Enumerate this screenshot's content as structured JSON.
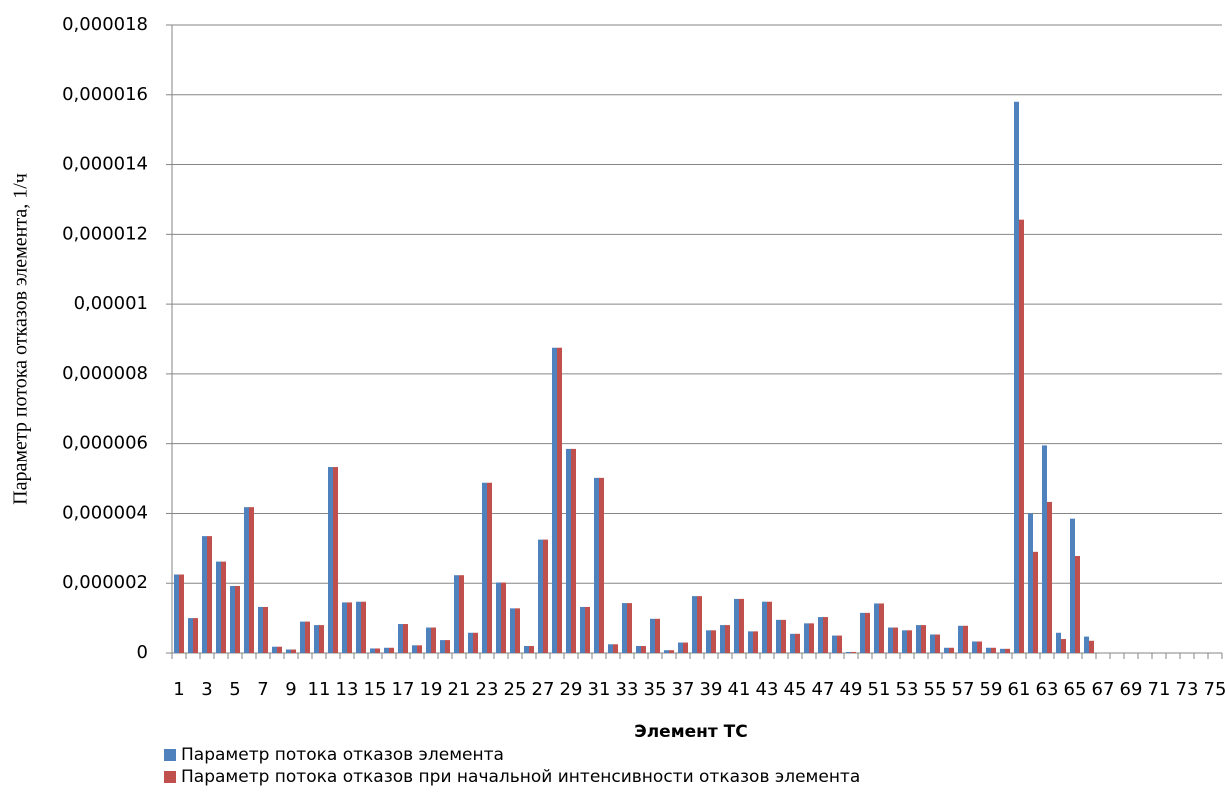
{
  "chart_data": {
    "type": "bar",
    "x_label": "Элемент ТС",
    "y_label": "Параметр потока отказов элемента, 1/ч",
    "categories": [
      "1",
      null,
      "3",
      null,
      "5",
      null,
      "7",
      null,
      "9",
      null,
      "11",
      null,
      "13",
      null,
      "15",
      null,
      "17",
      null,
      "19",
      null,
      "21",
      null,
      "23",
      null,
      "25",
      null,
      "27",
      null,
      "29",
      null,
      "31",
      null,
      "33",
      null,
      "35",
      null,
      "37",
      null,
      "39",
      null,
      "41",
      null,
      "43",
      null,
      "45",
      null,
      "47",
      null,
      "49",
      null,
      "51",
      null,
      "53",
      null,
      "55",
      null,
      "57",
      null,
      "59",
      null,
      "61",
      null,
      "63",
      null,
      "65",
      null,
      "67",
      null,
      "69",
      null,
      "71",
      null,
      "73",
      null,
      "75"
    ],
    "series": [
      {
        "name": "Параметр потока отказов элемента",
        "color": "#4f81bd",
        "values": [
          2.25e-06,
          1e-06,
          3.35e-06,
          2.62e-06,
          1.92e-06,
          4.18e-06,
          1.32e-06,
          1.8e-07,
          1e-07,
          9e-07,
          8e-07,
          5.33e-06,
          1.45e-06,
          1.47e-06,
          1.3e-07,
          1.5e-07,
          8.3e-07,
          2.2e-07,
          7.3e-07,
          3.7e-07,
          2.23e-06,
          5.8e-07,
          4.88e-06,
          2.02e-06,
          1.28e-06,
          2e-07,
          3.25e-06,
          8.75e-06,
          5.85e-06,
          1.32e-06,
          5.02e-06,
          2.5e-07,
          1.43e-06,
          2e-07,
          9.8e-07,
          8e-08,
          3e-07,
          1.63e-06,
          6.5e-07,
          8e-07,
          1.55e-06,
          6.2e-07,
          1.47e-06,
          9.5e-07,
          5.5e-07,
          8.5e-07,
          1.03e-06,
          5e-07,
          3e-08,
          1.15e-06,
          1.42e-06,
          7.3e-07,
          6.5e-07,
          8e-07,
          5.3e-07,
          1.5e-07,
          7.8e-07,
          3.3e-07,
          1.5e-07,
          1.2e-07,
          1.58e-05,
          4e-06,
          5.95e-06,
          5.8e-07,
          3.85e-06,
          4.7e-07,
          0,
          0,
          0,
          0,
          0,
          0,
          0,
          0,
          0
        ]
      },
      {
        "name": "Параметр потока отказов при начальной интенсивности отказов элемента",
        "color": "#c0504d",
        "values": [
          2.25e-06,
          1e-06,
          3.35e-06,
          2.62e-06,
          1.92e-06,
          4.18e-06,
          1.32e-06,
          1.8e-07,
          1e-07,
          9e-07,
          8e-07,
          5.33e-06,
          1.45e-06,
          1.47e-06,
          1.3e-07,
          1.5e-07,
          8.3e-07,
          2.2e-07,
          7.3e-07,
          3.7e-07,
          2.23e-06,
          5.8e-07,
          4.88e-06,
          2.02e-06,
          1.28e-06,
          2e-07,
          3.25e-06,
          8.75e-06,
          5.85e-06,
          1.32e-06,
          5.02e-06,
          2.5e-07,
          1.43e-06,
          2e-07,
          9.8e-07,
          8e-08,
          3e-07,
          1.63e-06,
          6.5e-07,
          8e-07,
          1.55e-06,
          6.2e-07,
          1.47e-06,
          9.5e-07,
          5.5e-07,
          8.5e-07,
          1.03e-06,
          5e-07,
          3e-08,
          1.15e-06,
          1.42e-06,
          7.3e-07,
          6.5e-07,
          8e-07,
          5.3e-07,
          1.5e-07,
          7.8e-07,
          3.3e-07,
          1.5e-07,
          1.2e-07,
          1.242e-05,
          2.9e-06,
          4.33e-06,
          4e-07,
          2.78e-06,
          3.5e-07,
          0,
          0,
          0,
          0,
          0,
          0,
          0,
          0,
          0
        ]
      }
    ],
    "ylim": [
      0,
      1.8e-05
    ],
    "yticks": [
      0,
      {
        "value": 2e-06,
        "label": "0,000002"
      },
      {
        "value": 4e-06,
        "label": "0,000004"
      },
      {
        "value": 6e-06,
        "label": "0,000006"
      },
      {
        "value": 8e-06,
        "label": "0,000008"
      },
      {
        "value": 1e-05,
        "label": "0,00001"
      },
      {
        "value": 1.2e-05,
        "label": "0,000012"
      },
      {
        "value": 1.4e-05,
        "label": "0,000014"
      },
      {
        "value": 1.6e-05,
        "label": "0,000016"
      },
      {
        "value": 1.8e-05,
        "label": "0,000018"
      }
    ],
    "grid": true,
    "legend": "bottom"
  }
}
